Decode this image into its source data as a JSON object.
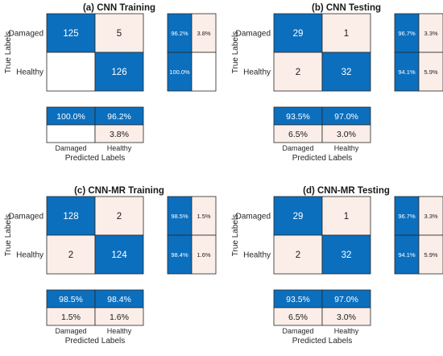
{
  "colors": {
    "high": "#0b6fbe",
    "low": "#fbeee9",
    "empty": "#ffffff",
    "border": "#262626",
    "text_dark": "#1a1a1a",
    "text_light": "#ffffff"
  },
  "chart_data": [
    {
      "type": "heatmap",
      "title": "(a) CNN Training",
      "row_labels": [
        "Damaged",
        "Healthy"
      ],
      "col_labels": [
        "Damaged",
        "Healthy"
      ],
      "ylabel": "True Labels",
      "xlabel": "Predicted Labels",
      "matrix": [
        [
          125,
          5
        ],
        [
          null,
          126
        ]
      ],
      "row_summary": [
        [
          "96.2%",
          "3.8%"
        ],
        [
          "100.0%",
          ""
        ]
      ],
      "col_summary": [
        [
          "100.0%",
          "96.2%"
        ],
        [
          "",
          "3.8%"
        ]
      ]
    },
    {
      "type": "heatmap",
      "title": "(b) CNN Testing",
      "row_labels": [
        "Damaged",
        "Healthy"
      ],
      "col_labels": [
        "Damaged",
        "Healthy"
      ],
      "ylabel": "True Labels",
      "xlabel": "Predicted Labels",
      "matrix": [
        [
          29,
          1
        ],
        [
          2,
          32
        ]
      ],
      "row_summary": [
        [
          "96.7%",
          "3.3%"
        ],
        [
          "94.1%",
          "5.9%"
        ]
      ],
      "col_summary": [
        [
          "93.5%",
          "97.0%"
        ],
        [
          "6.5%",
          "3.0%"
        ]
      ]
    },
    {
      "type": "heatmap",
      "title": "(c) CNN-MR Training",
      "row_labels": [
        "Damaged",
        "Healthy"
      ],
      "col_labels": [
        "Damaged",
        "Healthy"
      ],
      "ylabel": "True Labels",
      "xlabel": "Predicted Labels",
      "matrix": [
        [
          128,
          2
        ],
        [
          2,
          124
        ]
      ],
      "row_summary": [
        [
          "98.5%",
          "1.5%"
        ],
        [
          "98.4%",
          "1.6%"
        ]
      ],
      "col_summary": [
        [
          "98.5%",
          "98.4%"
        ],
        [
          "1.5%",
          "1.6%"
        ]
      ]
    },
    {
      "type": "heatmap",
      "title": "(d) CNN-MR Testing",
      "row_labels": [
        "Damaged",
        "Healthy"
      ],
      "col_labels": [
        "Damaged",
        "Healthy"
      ],
      "ylabel": "True Labels",
      "xlabel": "Predicted Labels",
      "matrix": [
        [
          29,
          1
        ],
        [
          2,
          32
        ]
      ],
      "row_summary": [
        [
          "96.7%",
          "3.3%"
        ],
        [
          "94.1%",
          "5.9%"
        ]
      ],
      "col_summary": [
        [
          "93.5%",
          "97.0%"
        ],
        [
          "6.5%",
          "3.0%"
        ]
      ]
    }
  ]
}
